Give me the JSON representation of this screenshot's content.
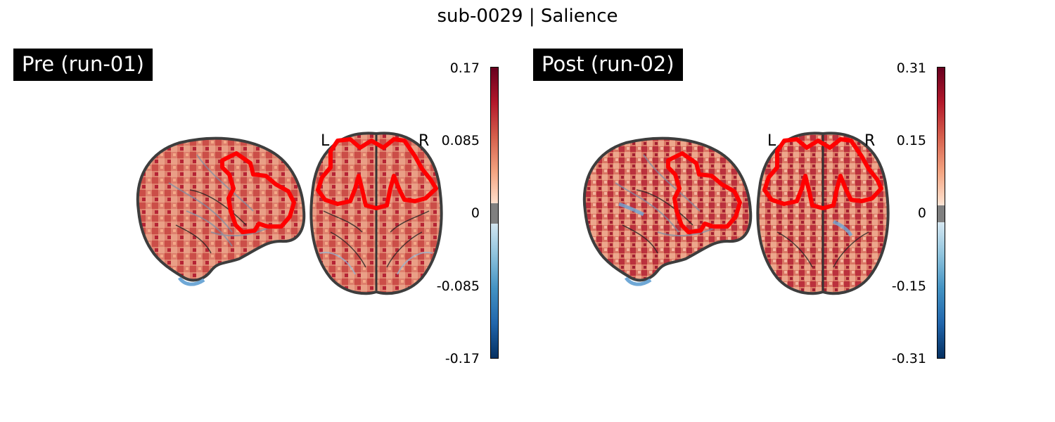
{
  "title": "sub-0029 | Salience",
  "colors": {
    "contour": "#ff0000",
    "outline": "#333333",
    "map_warm": "#d6604d",
    "map_hot": "#b2182b",
    "map_cool": "#92c5de"
  },
  "panels": [
    {
      "label": "Pre (run-01)",
      "orient_left": "L",
      "orient_right": "R",
      "colorbar": {
        "ticks": [
          "0.17",
          "0.085",
          "0",
          "-0.085",
          "-0.17"
        ],
        "max": 0.17,
        "min": -0.17
      }
    },
    {
      "label": "Post (run-02)",
      "orient_left": "L",
      "orient_right": "R",
      "colorbar": {
        "ticks": [
          "0.31",
          "0.15",
          "0",
          "-0.15",
          "-0.31"
        ],
        "max": 0.31,
        "min": -0.31
      }
    }
  ]
}
